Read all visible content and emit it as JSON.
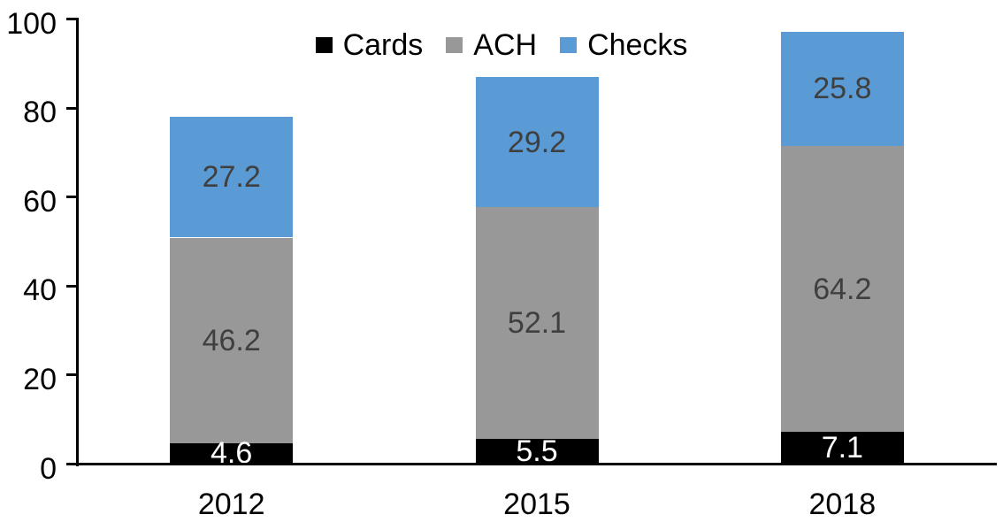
{
  "chart_data": {
    "type": "bar",
    "stacked": true,
    "title": "",
    "xlabel": "",
    "ylabel": "",
    "categories": [
      "2012",
      "2015",
      "2018"
    ],
    "series": [
      {
        "name": "Cards",
        "color": "#000000",
        "label_color": "#FFFFFF",
        "values": [
          4.6,
          5.5,
          7.1
        ]
      },
      {
        "name": "ACH",
        "color": "#989898",
        "label_color": "#3F3F3F",
        "values": [
          46.2,
          52.1,
          64.2
        ]
      },
      {
        "name": "Checks",
        "color": "#5B9BD5",
        "label_color": "#3F3F3F",
        "values": [
          27.2,
          29.2,
          25.8
        ]
      }
    ],
    "totals": [
      78.0,
      86.8,
      97.1
    ],
    "ylim": [
      0,
      100
    ],
    "yticks": [
      0,
      20,
      40,
      60,
      80,
      100
    ],
    "grid": false,
    "legend_position": "top",
    "axis_color": "#000000",
    "background_color": "#FFFFFF",
    "data_labels": true
  }
}
